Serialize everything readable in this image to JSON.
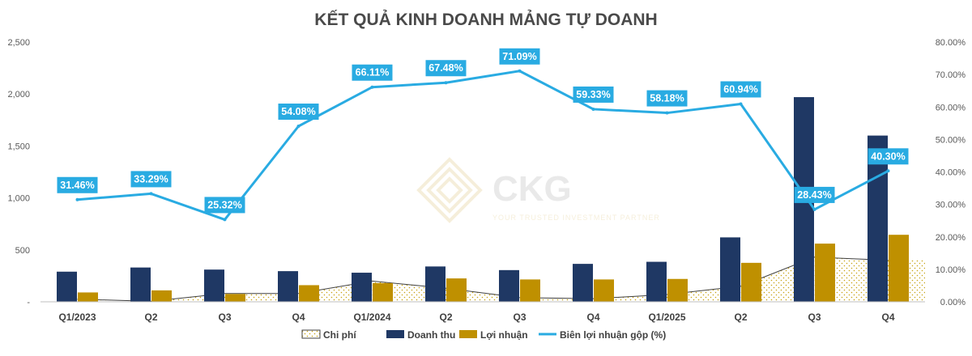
{
  "watermark": {
    "name": "CKG",
    "tagline": "YOUR TRUSTED INVESTMENT PARTNER"
  },
  "chart_data": {
    "type": "bar",
    "title": "KẾT QUẢ KINH DOANH MẢNG TỰ DOANH",
    "categories": [
      "Q1/2023",
      "Q2",
      "Q3",
      "Q4",
      "Q1/2024",
      "Q2",
      "Q3",
      "Q4",
      "Q1/2025",
      "Q2",
      "Q3",
      "Q4"
    ],
    "y_left": {
      "min": 0,
      "max": 2500,
      "ticks": [
        "-",
        "500",
        "1,000",
        "1,500",
        "2,000",
        "2,500"
      ],
      "tick_values": [
        0,
        500,
        1000,
        1500,
        2000,
        2500
      ]
    },
    "y_right": {
      "min": 0,
      "max": 80,
      "ticks": [
        "0.00%",
        "10.00%",
        "20.00%",
        "30.00%",
        "40.00%",
        "50.00%",
        "60.00%",
        "70.00%",
        "80.00%"
      ],
      "tick_values": [
        0,
        10,
        20,
        30,
        40,
        50,
        60,
        70,
        80
      ]
    },
    "grid": false,
    "legend_position": "bottom",
    "series": [
      {
        "name": "Chi phí",
        "type": "area",
        "axis": "left",
        "color": "#c8a415",
        "values": [
          25,
          5,
          80,
          80,
          200,
          130,
          40,
          30,
          70,
          150,
          430,
          400
        ]
      },
      {
        "name": "Doanh thu",
        "type": "bar",
        "axis": "left",
        "color": "#1f3864",
        "values": [
          290,
          330,
          310,
          295,
          280,
          340,
          305,
          365,
          385,
          620,
          1970,
          1600
        ]
      },
      {
        "name": "Lợi nhuận",
        "type": "bar",
        "axis": "left",
        "color": "#bf9000",
        "values": [
          90,
          110,
          75,
          160,
          180,
          225,
          215,
          215,
          220,
          375,
          560,
          645
        ]
      },
      {
        "name": "Biên lợi nhuận gộp (%)",
        "type": "line",
        "axis": "right",
        "color": "#29abe2",
        "values": [
          31.46,
          33.29,
          25.32,
          54.08,
          66.11,
          67.48,
          71.09,
          59.33,
          58.18,
          60.94,
          28.43,
          40.3
        ],
        "labels": [
          "31.46%",
          "33.29%",
          "25.32%",
          "54.08%",
          "66.11%",
          "67.48%",
          "71.09%",
          "59.33%",
          "58.18%",
          "60.94%",
          "28.43%",
          "40.30%"
        ]
      }
    ]
  }
}
